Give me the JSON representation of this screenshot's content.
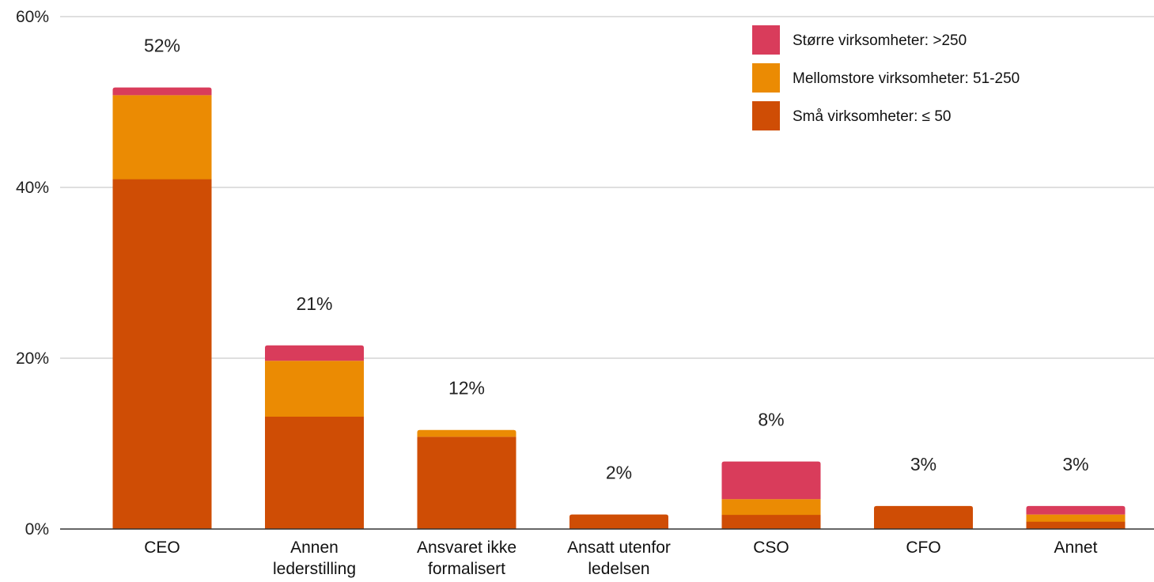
{
  "chart_data": {
    "type": "bar",
    "stacked": true,
    "categories": [
      [
        "CEO"
      ],
      [
        "Annen",
        "lederstilling"
      ],
      [
        "Ansvaret ikke",
        "formalisert"
      ],
      [
        "Ansatt utenfor",
        "ledelsen"
      ],
      [
        "CSO"
      ],
      [
        "CFO"
      ],
      [
        "Annet"
      ]
    ],
    "series": [
      {
        "name": "Små virksomheter: ≤ 50",
        "color": "#cf4d05",
        "values": [
          41.0,
          13.2,
          10.8,
          1.7,
          1.7,
          2.7,
          0.9
        ]
      },
      {
        "name": "Mellomstore virksomheter: 51-250",
        "color": "#eb8b03",
        "values": [
          9.8,
          6.5,
          0.8,
          0.0,
          1.8,
          0.0,
          0.8
        ]
      },
      {
        "name": "Større virksomheter: >250",
        "color": "#d93c5b",
        "values": [
          0.9,
          1.8,
          0.0,
          0.0,
          4.4,
          0.0,
          1.0
        ]
      }
    ],
    "totals": [
      "52%",
      "21%",
      "12%",
      "2%",
      "8%",
      "3%",
      "3%"
    ],
    "ylim": [
      0,
      60
    ],
    "yticks": [
      0,
      20,
      40,
      60
    ],
    "ytick_labels": [
      "0%",
      "20%",
      "40%",
      "60%"
    ],
    "grid": true,
    "legend_position": "top-right",
    "legend_order": [
      2,
      1,
      0
    ]
  }
}
